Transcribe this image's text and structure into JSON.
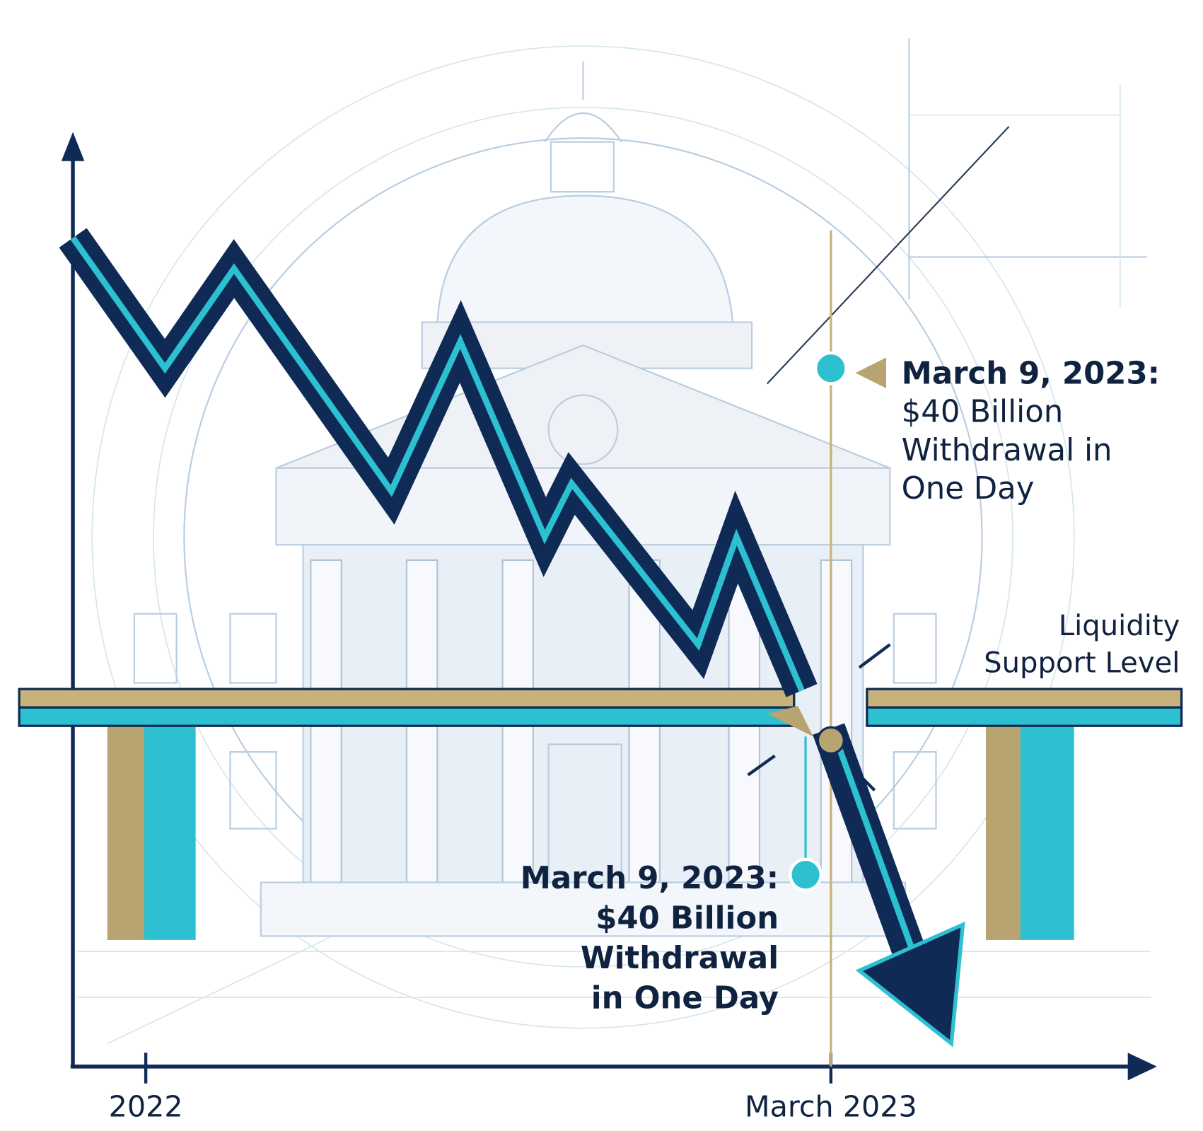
{
  "axis_labels": {
    "x_start": "2022",
    "x_end": "March 2023"
  },
  "annotations": [
    {
      "title": "March 9, 2023:",
      "lines": [
        "$40 Billion",
        "Withdrawal in",
        "One Day"
      ]
    },
    {
      "title": "March 9, 2023:",
      "lines": [
        "$40 Billion",
        "Withdrawal",
        "in One Day"
      ]
    }
  ],
  "support_label": [
    "Liquidity",
    "Support Level"
  ]
}
